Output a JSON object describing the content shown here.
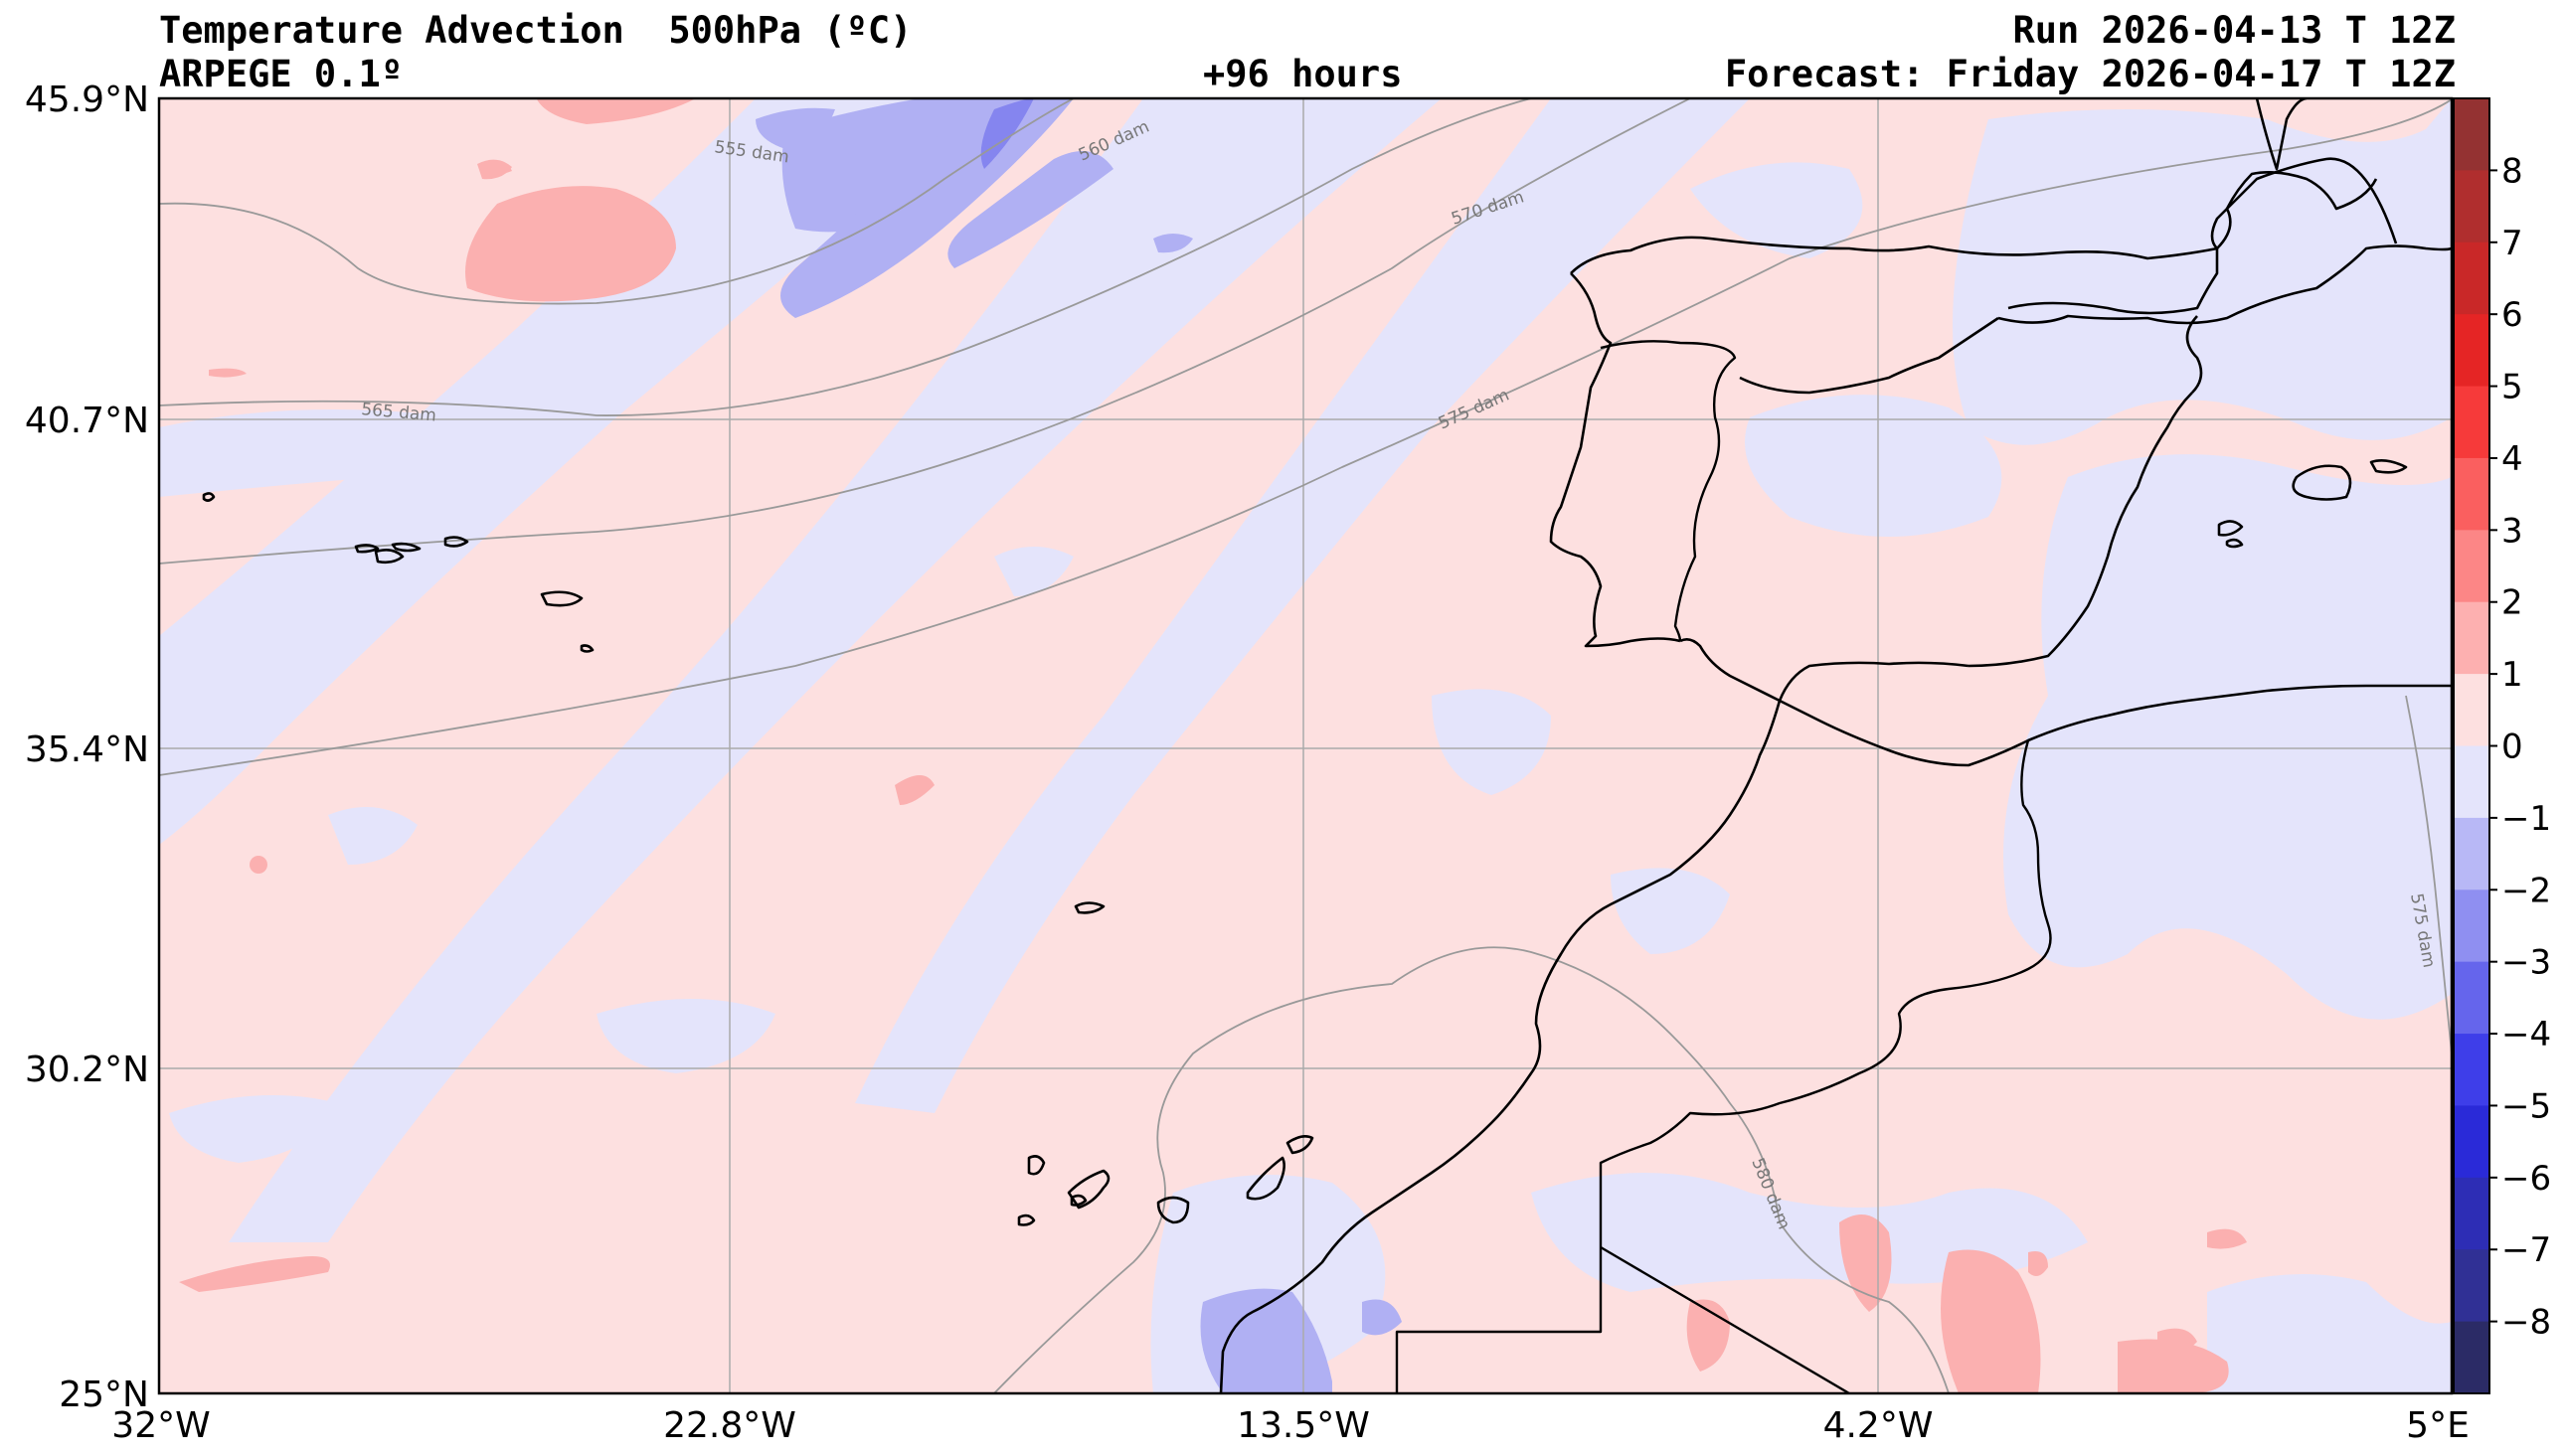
{
  "header": {
    "title": "Temperature Advection  500hPa (ºC)",
    "model": "ARPEGE 0.1º",
    "lead": "+96 hours",
    "run": "Run 2026-04-13 T 12Z",
    "forecast": "Forecast: Friday 2026-04-17 T 12Z"
  },
  "map": {
    "lon_ticks": [
      "32°W",
      "22.8°W",
      "13.5°W",
      "4.2°W",
      "5°E"
    ],
    "lat_ticks": [
      "45.9°N",
      "40.7°N",
      "35.4°N",
      "30.2°N",
      "25°N"
    ],
    "contour_labels": [
      "555 dam",
      "560 dam",
      "570 dam",
      "565 dam",
      "575 dam",
      "575 dam",
      "580 dam"
    ],
    "colors": {
      "warm_light": "#fde0e0",
      "cool_light": "#e4e4fb",
      "warm_mid": "#fbb0b0",
      "cool_mid": "#b0b0f3",
      "cool_strong": "#8585ef",
      "warm_strong": "#f89494"
    }
  },
  "colorbar": {
    "labels": [
      "8",
      "7",
      "6",
      "5",
      "4",
      "3",
      "2",
      "1",
      "0",
      "−1",
      "−2",
      "−3",
      "−4",
      "−5",
      "−6",
      "−7",
      "−8"
    ],
    "colors": [
      "#943232",
      "#b02e2e",
      "#c92828",
      "#e52525",
      "#f63a3a",
      "#fa5f5f",
      "#fc8686",
      "#fdb0b0",
      "#fde0e0",
      "#e4e4fb",
      "#b8b8f6",
      "#8f8ff1",
      "#6565ec",
      "#3e3ee9",
      "#2a2ad8",
      "#2d2db5",
      "#303095",
      "#2b2b66"
    ]
  }
}
